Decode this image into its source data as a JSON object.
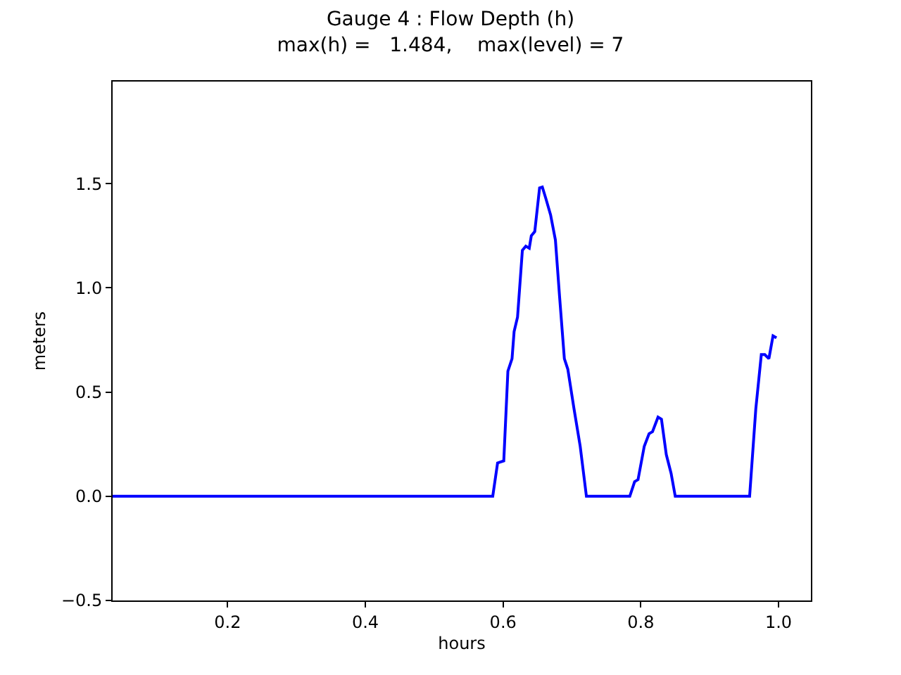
{
  "chart_data": {
    "type": "line",
    "title": "Gauge 4 : Flow Depth (h)\nmax(h) =   1.484,    max(level) = 7",
    "xlabel": "hours",
    "ylabel": "meters",
    "x": [
      0.033,
      0.585,
      0.592,
      0.601,
      0.607,
      0.613,
      0.616,
      0.621,
      0.628,
      0.633,
      0.638,
      0.641,
      0.646,
      0.653,
      0.657,
      0.662,
      0.669,
      0.676,
      0.682,
      0.689,
      0.694,
      0.703,
      0.712,
      0.721,
      0.784,
      0.791,
      0.796,
      0.805,
      0.812,
      0.817,
      0.825,
      0.83,
      0.837,
      0.844,
      0.85,
      0.958,
      0.967,
      0.975,
      0.98,
      0.986,
      0.992,
      0.997
    ],
    "series": [
      {
        "color": "#0000ff",
        "values": [
          0,
          0,
          0.16,
          0.17,
          0.6,
          0.66,
          0.79,
          0.86,
          1.18,
          1.2,
          1.19,
          1.25,
          1.27,
          1.48,
          1.484,
          1.43,
          1.35,
          1.23,
          0.96,
          0.66,
          0.61,
          0.42,
          0.24,
          0,
          0,
          0.07,
          0.08,
          0.24,
          0.3,
          0.31,
          0.38,
          0.37,
          0.2,
          0.11,
          0,
          0,
          0.42,
          0.68,
          0.68,
          0.66,
          0.77,
          0.76
        ]
      }
    ],
    "xlim": [
      0.033,
      1.047
    ],
    "ylim": [
      -0.5,
      1.99
    ],
    "xticks": [
      0.2,
      0.4,
      0.6,
      0.8,
      {
        "value": 1,
        "label": "1.0"
      }
    ],
    "yticks": [
      {
        "value": -0.5,
        "label": "−0.5"
      },
      {
        "value": 0,
        "label": "0.0"
      },
      0.5,
      {
        "value": 1,
        "label": "1.0"
      },
      1.5
    ],
    "marker": "none",
    "line_style": "solid"
  }
}
